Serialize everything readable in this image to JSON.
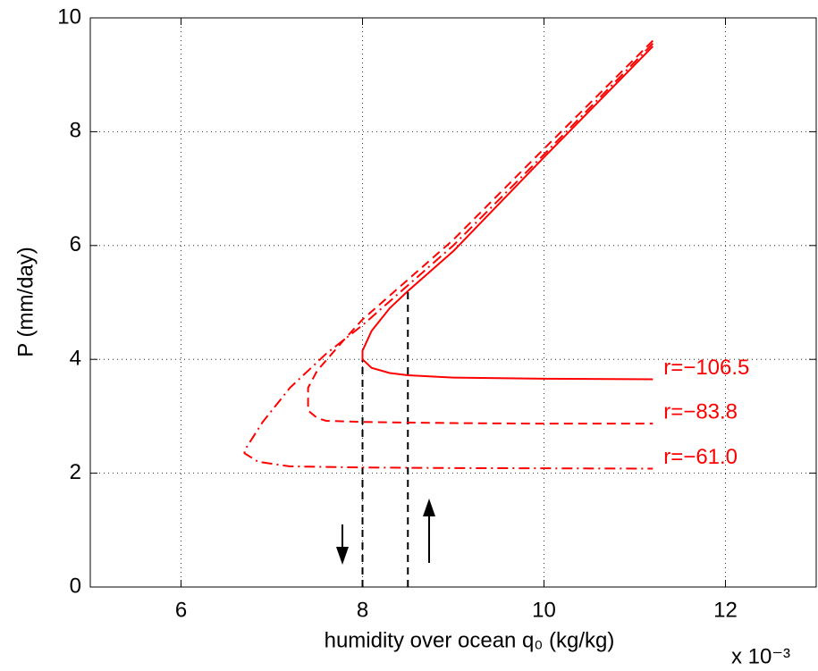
{
  "chart_data": {
    "type": "line",
    "xlabel": "humidity over ocean q₀ (kg/kg)",
    "ylabel": "P (mm/day)",
    "x_multiplier": "x 10⁻³",
    "xlim": [
      5,
      13
    ],
    "xticks": [
      6,
      8,
      10,
      12
    ],
    "ylim": [
      0,
      10
    ],
    "yticks": [
      0,
      2,
      4,
      6,
      8,
      10
    ],
    "grid": true,
    "series": [
      {
        "name": "r=−106.5",
        "color": "#ff0000",
        "dash": "solid",
        "x": [
          11.2,
          10,
          9,
          8.5,
          8.3,
          8.1,
          8.0,
          8.0,
          8.1,
          8.3,
          8.5,
          9,
          10,
          11.2
        ],
        "values": [
          9.5,
          7.55,
          5.9,
          5.2,
          4.9,
          4.5,
          4.15,
          4.0,
          3.85,
          3.76,
          3.72,
          3.68,
          3.66,
          3.65
        ]
      },
      {
        "name": "r=−83.8",
        "color": "#ff0000",
        "dash": "dashed",
        "x": [
          11.2,
          10,
          9,
          8.5,
          8.0,
          7.8,
          7.5,
          7.4,
          7.4,
          7.5,
          7.6,
          8,
          9,
          10,
          11.2
        ],
        "values": [
          9.6,
          7.7,
          6.1,
          5.4,
          4.7,
          4.35,
          3.8,
          3.5,
          3.1,
          2.97,
          2.92,
          2.9,
          2.88,
          2.87,
          2.87
        ]
      },
      {
        "name": "r=−61.0",
        "color": "#ff0000",
        "dash": "dashdot",
        "x": [
          11.2,
          10,
          9,
          8.5,
          8.0,
          7.6,
          7.2,
          6.9,
          6.7,
          6.7,
          6.85,
          7.2,
          8,
          9,
          11.2
        ],
        "values": [
          9.55,
          7.6,
          6.0,
          5.3,
          4.6,
          4.1,
          3.5,
          2.9,
          2.4,
          2.35,
          2.2,
          2.12,
          2.1,
          2.09,
          2.08
        ]
      }
    ],
    "reference_lines": [
      {
        "x": 8.0,
        "y": 4.0
      },
      {
        "x": 8.5,
        "y": 5.2
      }
    ]
  }
}
